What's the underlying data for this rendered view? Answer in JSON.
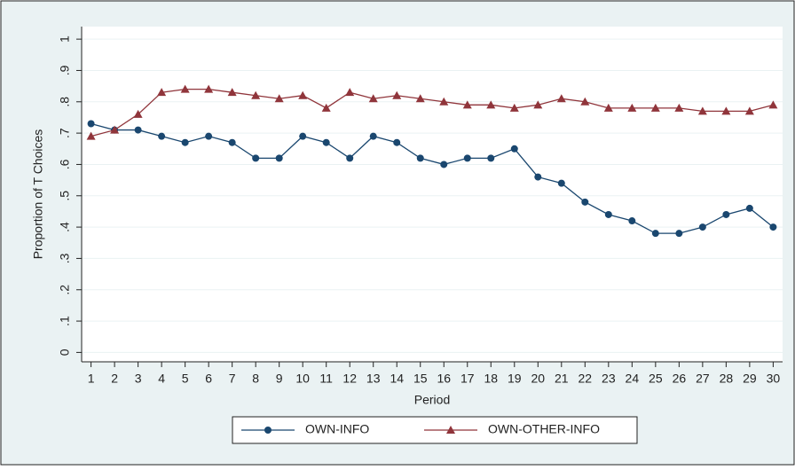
{
  "chart_data": {
    "type": "line",
    "xlabel": "Period",
    "ylabel": "Proportion of T Choices",
    "x": [
      1,
      2,
      3,
      4,
      5,
      6,
      7,
      8,
      9,
      10,
      11,
      12,
      13,
      14,
      15,
      16,
      17,
      18,
      19,
      20,
      21,
      22,
      23,
      24,
      25,
      26,
      27,
      28,
      29,
      30
    ],
    "series": [
      {
        "name": "OWN-INFO",
        "color": "#1a476f",
        "marker": "circle",
        "values": [
          0.73,
          0.71,
          0.71,
          0.69,
          0.67,
          0.69,
          0.67,
          0.62,
          0.62,
          0.69,
          0.67,
          0.62,
          0.69,
          0.67,
          0.62,
          0.6,
          0.62,
          0.62,
          0.65,
          0.56,
          0.54,
          0.48,
          0.44,
          0.42,
          0.38,
          0.38,
          0.4,
          0.44,
          0.46,
          0.4
        ]
      },
      {
        "name": "OWN-OTHER-INFO",
        "color": "#90353b",
        "marker": "triangle",
        "values": [
          0.69,
          0.71,
          0.76,
          0.83,
          0.84,
          0.84,
          0.83,
          0.82,
          0.81,
          0.82,
          0.78,
          0.83,
          0.81,
          0.82,
          0.81,
          0.8,
          0.79,
          0.79,
          0.78,
          0.79,
          0.81,
          0.8,
          0.78,
          0.78,
          0.78,
          0.78,
          0.77,
          0.77,
          0.77,
          0.79
        ]
      }
    ],
    "xlim": [
      0.6,
      30.4
    ],
    "xticks": [
      1,
      2,
      3,
      4,
      5,
      6,
      7,
      8,
      9,
      10,
      11,
      12,
      13,
      14,
      15,
      16,
      17,
      18,
      19,
      20,
      21,
      22,
      23,
      24,
      25,
      26,
      27,
      28,
      29,
      30
    ],
    "ylim": [
      -0.03,
      1.04
    ],
    "yticks": [
      0,
      {
        "value": 0.1,
        "label": ".1"
      },
      {
        "value": 0.2,
        "label": ".2"
      },
      {
        "value": 0.3,
        "label": ".3"
      },
      {
        "value": 0.4,
        "label": ".4"
      },
      {
        "value": 0.5,
        "label": ".5"
      },
      {
        "value": 0.6,
        "label": ".6"
      },
      {
        "value": 0.7,
        "label": ".7"
      },
      {
        "value": 0.8,
        "label": ".8"
      },
      {
        "value": 0.9,
        "label": ".9"
      },
      1
    ],
    "grid": true,
    "legend": "bottom"
  }
}
